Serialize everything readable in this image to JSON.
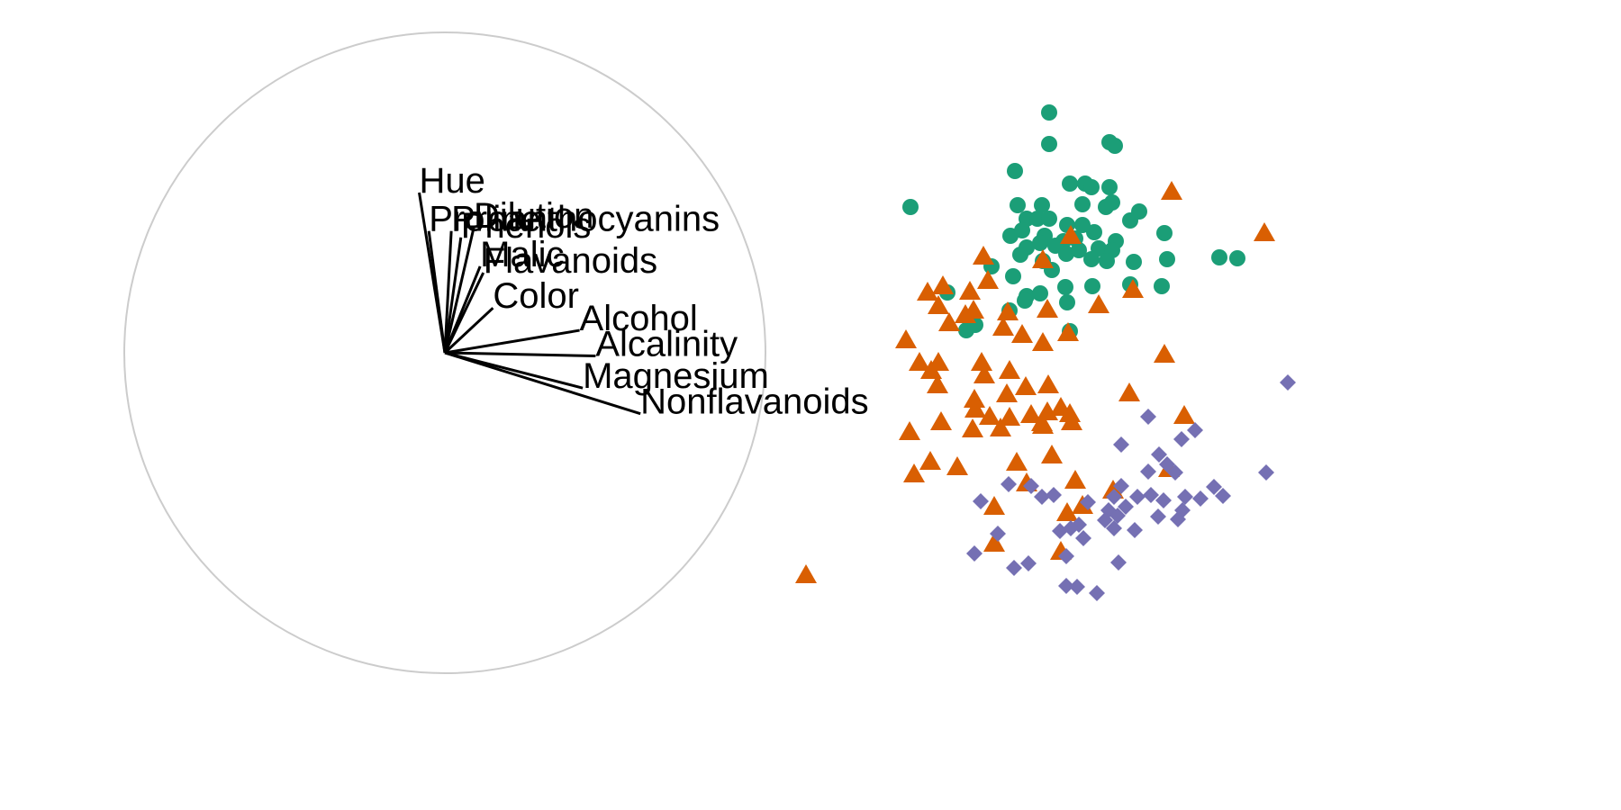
{
  "chart_data": {
    "type": "scatter",
    "title": "",
    "xlabel": "",
    "ylabel": "",
    "grid": false,
    "legend": "none",
    "unit_circle": {
      "color": "#cccccc"
    },
    "arrows": [
      {
        "label": "Hue",
        "dx": -0.08,
        "dy": 0.5
      },
      {
        "label": "Proline",
        "dx": -0.05,
        "dy": 0.38
      },
      {
        "label": "Proanthocyanins",
        "dx": 0.02,
        "dy": 0.38
      },
      {
        "label": "Phenols",
        "dx": 0.05,
        "dy": 0.36
      },
      {
        "label": "Dilution",
        "dx": 0.09,
        "dy": 0.39
      },
      {
        "label": "Malic",
        "dx": 0.11,
        "dy": 0.27
      },
      {
        "label": "Flavanoids",
        "dx": 0.12,
        "dy": 0.25
      },
      {
        "label": "Color",
        "dx": 0.15,
        "dy": 0.14
      },
      {
        "label": "Alcohol",
        "dx": 0.42,
        "dy": 0.07
      },
      {
        "label": "Alcalinity",
        "dx": 0.47,
        "dy": -0.01
      },
      {
        "label": "Magnesium",
        "dx": 0.43,
        "dy": -0.11
      },
      {
        "label": "Nonflavanoids",
        "dx": 0.61,
        "dy": -0.19
      }
    ],
    "series": [
      {
        "marker": "circle",
        "color": "#1b9e77",
        "points": [
          [
            1165,
            125
          ],
          [
            1165,
            160
          ],
          [
            1232,
            158
          ],
          [
            1238,
            162
          ],
          [
            1127,
            190
          ],
          [
            1011,
            230
          ],
          [
            1188,
            204
          ],
          [
            1205,
            204
          ],
          [
            1212,
            208
          ],
          [
            1232,
            208
          ],
          [
            1130,
            228
          ],
          [
            1157,
            228
          ],
          [
            1202,
            227
          ],
          [
            1228,
            230
          ],
          [
            1235,
            225
          ],
          [
            1265,
            235
          ],
          [
            1140,
            243
          ],
          [
            1152,
            243
          ],
          [
            1165,
            243
          ],
          [
            1185,
            250
          ],
          [
            1202,
            250
          ],
          [
            1255,
            245
          ],
          [
            1122,
            262
          ],
          [
            1135,
            256
          ],
          [
            1160,
            262
          ],
          [
            1181,
            268
          ],
          [
            1194,
            265
          ],
          [
            1215,
            258
          ],
          [
            1239,
            268
          ],
          [
            1293,
            259
          ],
          [
            1140,
            275
          ],
          [
            1155,
            270
          ],
          [
            1172,
            273
          ],
          [
            1220,
            276
          ],
          [
            1235,
            278
          ],
          [
            1133,
            283
          ],
          [
            1158,
            290
          ],
          [
            1184,
            282
          ],
          [
            1198,
            278
          ],
          [
            1212,
            288
          ],
          [
            1229,
            290
          ],
          [
            1259,
            291
          ],
          [
            1296,
            288
          ],
          [
            1354,
            286
          ],
          [
            1374,
            287
          ],
          [
            1101,
            296
          ],
          [
            1125,
            307
          ],
          [
            1168,
            300
          ],
          [
            1052,
            325
          ],
          [
            1140,
            329
          ],
          [
            1155,
            326
          ],
          [
            1183,
            319
          ],
          [
            1213,
            318
          ],
          [
            1255,
            316
          ],
          [
            1290,
            318
          ],
          [
            1121,
            345
          ],
          [
            1138,
            334
          ],
          [
            1185,
            336
          ],
          [
            1073,
            367
          ],
          [
            1083,
            361
          ],
          [
            1188,
            368
          ]
        ]
      },
      {
        "marker": "triangle",
        "color": "#d95f02",
        "points": [
          [
            1301,
            213
          ],
          [
            1404,
            259
          ],
          [
            1189,
            262
          ],
          [
            1092,
            285
          ],
          [
            1158,
            289
          ],
          [
            1047,
            318
          ],
          [
            1030,
            325
          ],
          [
            1077,
            324
          ],
          [
            1097,
            312
          ],
          [
            1258,
            322
          ],
          [
            1042,
            340
          ],
          [
            1081,
            345
          ],
          [
            1119,
            347
          ],
          [
            1163,
            344
          ],
          [
            1220,
            339
          ],
          [
            1072,
            350
          ],
          [
            1054,
            359
          ],
          [
            1114,
            364
          ],
          [
            1135,
            372
          ],
          [
            1186,
            370
          ],
          [
            1006,
            378
          ],
          [
            1158,
            381
          ],
          [
            1293,
            394
          ],
          [
            1021,
            403
          ],
          [
            1042,
            403
          ],
          [
            1090,
            403
          ],
          [
            1034,
            412
          ],
          [
            1121,
            412
          ],
          [
            1164,
            428
          ],
          [
            1041,
            428
          ],
          [
            1093,
            417
          ],
          [
            1139,
            430
          ],
          [
            1254,
            437
          ],
          [
            1118,
            438
          ],
          [
            1082,
            444
          ],
          [
            1178,
            453
          ],
          [
            1099,
            463
          ],
          [
            1145,
            461
          ],
          [
            1083,
            455
          ],
          [
            1163,
            458
          ],
          [
            1188,
            460
          ],
          [
            1315,
            462
          ],
          [
            1121,
            464
          ],
          [
            1190,
            469
          ],
          [
            1045,
            469
          ],
          [
            1157,
            470
          ],
          [
            1158,
            473
          ],
          [
            1080,
            477
          ],
          [
            1111,
            476
          ],
          [
            1010,
            480
          ],
          [
            1168,
            506
          ],
          [
            1033,
            513
          ],
          [
            1063,
            519
          ],
          [
            1015,
            527
          ],
          [
            1129,
            514
          ],
          [
            1140,
            537
          ],
          [
            1194,
            534
          ],
          [
            1298,
            521
          ],
          [
            1236,
            545
          ],
          [
            1104,
            563
          ],
          [
            1202,
            562
          ],
          [
            1185,
            570
          ],
          [
            1104,
            604
          ],
          [
            1178,
            613
          ],
          [
            895,
            639
          ]
        ]
      },
      {
        "marker": "diamond",
        "color": "#7570b3",
        "points": [
          [
            1430,
            425
          ],
          [
            1275,
            463
          ],
          [
            1327,
            478
          ],
          [
            1312,
            488
          ],
          [
            1245,
            494
          ],
          [
            1287,
            505
          ],
          [
            1296,
            516
          ],
          [
            1275,
            524
          ],
          [
            1305,
            525
          ],
          [
            1406,
            525
          ],
          [
            1120,
            538
          ],
          [
            1145,
            540
          ],
          [
            1245,
            540
          ],
          [
            1348,
            541
          ],
          [
            1157,
            552
          ],
          [
            1170,
            550
          ],
          [
            1237,
            552
          ],
          [
            1263,
            552
          ],
          [
            1278,
            550
          ],
          [
            1292,
            556
          ],
          [
            1316,
            552
          ],
          [
            1333,
            554
          ],
          [
            1358,
            551
          ],
          [
            1089,
            557
          ],
          [
            1208,
            558
          ],
          [
            1250,
            563
          ],
          [
            1231,
            567
          ],
          [
            1313,
            567
          ],
          [
            1241,
            573
          ],
          [
            1286,
            574
          ],
          [
            1308,
            577
          ],
          [
            1227,
            578
          ],
          [
            1198,
            583
          ],
          [
            1237,
            587
          ],
          [
            1260,
            589
          ],
          [
            1177,
            590
          ],
          [
            1189,
            587
          ],
          [
            1108,
            593
          ],
          [
            1203,
            598
          ],
          [
            1082,
            615
          ],
          [
            1184,
            618
          ],
          [
            1242,
            625
          ],
          [
            1142,
            626
          ],
          [
            1126,
            631
          ],
          [
            1184,
            651
          ],
          [
            1196,
            652
          ],
          [
            1218,
            659
          ]
        ]
      }
    ]
  }
}
